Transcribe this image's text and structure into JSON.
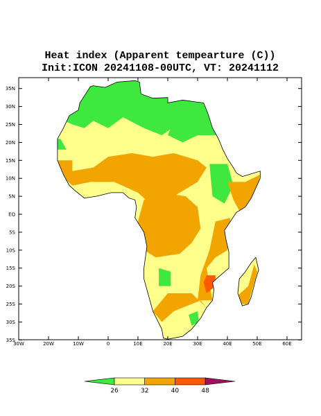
{
  "title": "Heat index (Apparent tempearture (C))",
  "subtitle": "Init:ICON 20241108-00UTC, VT: 20241112",
  "map": {
    "lat_ticks": [
      {
        "value": 35,
        "label": "35N"
      },
      {
        "value": 30,
        "label": "30N"
      },
      {
        "value": 25,
        "label": "25N"
      },
      {
        "value": 20,
        "label": "20N"
      },
      {
        "value": 15,
        "label": "15N"
      },
      {
        "value": 10,
        "label": "10N"
      },
      {
        "value": 5,
        "label": "5N"
      },
      {
        "value": 0,
        "label": "EQ"
      },
      {
        "value": -5,
        "label": "5S"
      },
      {
        "value": -10,
        "label": "10S"
      },
      {
        "value": -15,
        "label": "15S"
      },
      {
        "value": -20,
        "label": "20S"
      },
      {
        "value": -25,
        "label": "25S"
      },
      {
        "value": -30,
        "label": "30S"
      },
      {
        "value": -35,
        "label": "35S"
      }
    ],
    "lon_ticks": [
      {
        "value": -30,
        "label": "30W"
      },
      {
        "value": -20,
        "label": "20W"
      },
      {
        "value": -10,
        "label": "10W"
      },
      0,
      {
        "value": 10,
        "label": "10E"
      },
      {
        "value": 20,
        "label": "20E"
      },
      {
        "value": 30,
        "label": "30E"
      },
      {
        "value": 40,
        "label": "40E"
      },
      {
        "value": 50,
        "label": "50E"
      },
      {
        "value": 60,
        "label": "60E"
      }
    ]
  },
  "legend": {
    "levels": [
      26,
      32,
      40,
      48
    ],
    "colors": [
      "#3ee83e",
      "#ffff8c",
      "#f2a400",
      "#ff5a00",
      "#a0105c"
    ]
  }
}
